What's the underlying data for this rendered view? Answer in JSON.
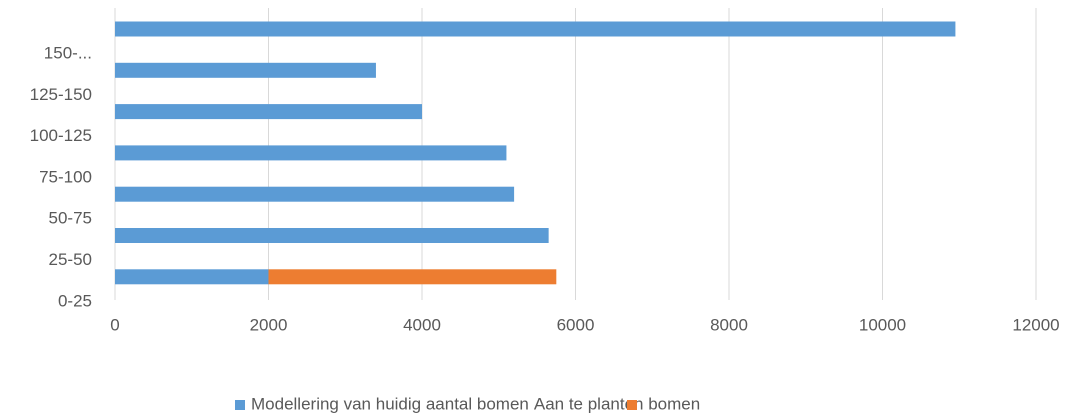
{
  "chart_data": {
    "type": "bar",
    "orientation": "horizontal",
    "stacked": true,
    "categories": [
      "150-...",
      "125-150",
      "100-125",
      "75-100",
      "50-75",
      "25-50",
      "0-25"
    ],
    "series": [
      {
        "name": "Modellering van huidig aantal bomen",
        "color": "#5b9bd5",
        "values": [
          10950,
          3400,
          4000,
          5100,
          5200,
          5650,
          2000
        ]
      },
      {
        "name": "Aan te planten bomen",
        "color": "#ed7d31",
        "values": [
          null,
          null,
          null,
          null,
          null,
          null,
          3750
        ]
      }
    ],
    "xlim": [
      0,
      12000
    ],
    "xticks": [
      0,
      2000,
      4000,
      6000,
      8000,
      10000,
      12000
    ],
    "grid": true,
    "legend": "bottom"
  }
}
